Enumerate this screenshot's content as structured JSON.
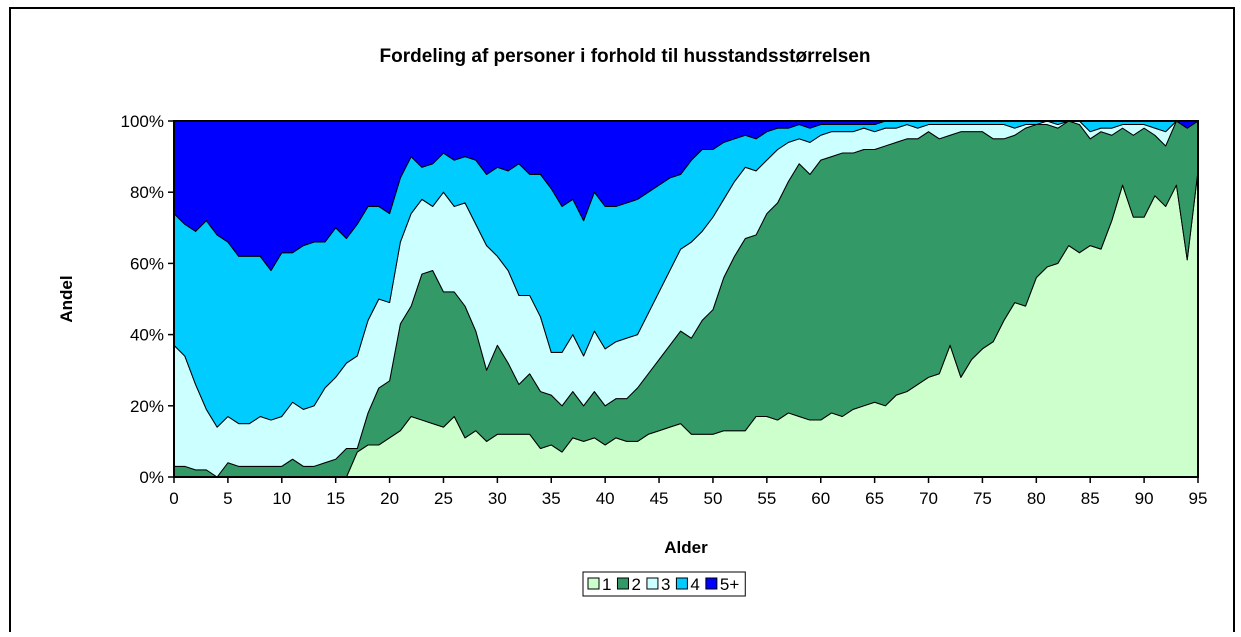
{
  "chart_data": {
    "type": "stacked_area",
    "title": "Fordeling af personer i forhold til husstandsstørrelsen",
    "x_label": "Alder",
    "y_label": "Andel",
    "x": [
      0,
      1,
      2,
      3,
      4,
      5,
      6,
      7,
      8,
      9,
      10,
      11,
      12,
      13,
      14,
      15,
      16,
      17,
      18,
      19,
      20,
      21,
      22,
      23,
      24,
      25,
      26,
      27,
      28,
      29,
      30,
      31,
      32,
      33,
      34,
      35,
      36,
      37,
      38,
      39,
      40,
      41,
      42,
      43,
      44,
      45,
      46,
      47,
      48,
      49,
      50,
      51,
      52,
      53,
      54,
      55,
      56,
      57,
      58,
      59,
      60,
      61,
      62,
      63,
      64,
      65,
      66,
      67,
      68,
      69,
      70,
      71,
      72,
      73,
      74,
      75,
      76,
      77,
      78,
      79,
      80,
      81,
      82,
      83,
      84,
      85,
      86,
      87,
      88,
      89,
      90,
      91,
      92,
      93,
      94,
      95
    ],
    "xlim": [
      0,
      95
    ],
    "xticks": [
      0,
      5,
      10,
      15,
      20,
      25,
      30,
      35,
      40,
      45,
      50,
      55,
      60,
      65,
      70,
      75,
      80,
      85,
      90,
      95
    ],
    "ylim": [
      0,
      100
    ],
    "yticks": [
      {
        "value": 0,
        "label": "0%"
      },
      {
        "value": 20,
        "label": "20%"
      },
      {
        "value": 40,
        "label": "40%"
      },
      {
        "value": 60,
        "label": "60%"
      },
      {
        "value": 80,
        "label": "80%"
      },
      {
        "value": 100,
        "label": "100%"
      }
    ],
    "legend": "bottom",
    "series": [
      {
        "name": "1",
        "color": "#ccffcc",
        "values": [
          0,
          0,
          0,
          0,
          0,
          0,
          0,
          0,
          0,
          0,
          0,
          0,
          0,
          0,
          0,
          0,
          0,
          7,
          9,
          9,
          11,
          13,
          17,
          16,
          15,
          14,
          17,
          11,
          13,
          10,
          12,
          12,
          12,
          12,
          8,
          9,
          7,
          11,
          10,
          11,
          9,
          11,
          10,
          10,
          12,
          13,
          14,
          15,
          12,
          12,
          12,
          13,
          13,
          13,
          17,
          17,
          16,
          18,
          17,
          16,
          16,
          18,
          17,
          19,
          20,
          21,
          20,
          23,
          24,
          26,
          28,
          29,
          37,
          28,
          33,
          36,
          38,
          44,
          49,
          48,
          56,
          59,
          60,
          65,
          63,
          65,
          64,
          72,
          82,
          73,
          73,
          79,
          76,
          82,
          61,
          86
        ]
      },
      {
        "name": "2",
        "color": "#339966",
        "values": [
          3,
          3,
          2,
          2,
          0,
          4,
          3,
          3,
          3,
          3,
          3,
          5,
          3,
          3,
          4,
          5,
          8,
          1,
          9,
          16,
          16,
          30,
          31,
          41,
          43,
          38,
          35,
          37,
          28,
          20,
          25,
          20,
          14,
          17,
          16,
          14,
          13,
          13,
          10,
          13,
          11,
          11,
          12,
          15,
          17,
          20,
          23,
          26,
          27,
          32,
          35,
          43,
          49,
          54,
          51,
          57,
          61,
          65,
          71,
          69,
          73,
          72,
          74,
          72,
          72,
          71,
          73,
          71,
          71,
          69,
          69,
          66,
          59,
          69,
          64,
          61,
          57,
          51,
          47,
          50,
          43,
          40,
          38,
          35,
          36,
          30,
          33,
          24,
          16,
          23,
          25,
          17,
          17,
          18,
          37,
          14
        ]
      },
      {
        "name": "3",
        "color": "#ccffff",
        "values": [
          34,
          31,
          24,
          17,
          14,
          13,
          12,
          12,
          14,
          13,
          14,
          16,
          16,
          17,
          21,
          23,
          24,
          26,
          26,
          25,
          22,
          23,
          26,
          21,
          18,
          28,
          24,
          29,
          30,
          35,
          25,
          26,
          25,
          22,
          21,
          12,
          15,
          16,
          14,
          17,
          16,
          16,
          17,
          15,
          17,
          19,
          21,
          23,
          27,
          25,
          26,
          22,
          21,
          20,
          18,
          15,
          15,
          11,
          7,
          9,
          7,
          7,
          6,
          6,
          6,
          5,
          5,
          4,
          4,
          3,
          2,
          4,
          3,
          2,
          2,
          2,
          4,
          4,
          2,
          1,
          0,
          1,
          1,
          0,
          1,
          2,
          1,
          2,
          1,
          3,
          1,
          2,
          4,
          0,
          0,
          0
        ]
      },
      {
        "name": "4",
        "color": "#00ccff",
        "values": [
          37,
          37,
          43,
          53,
          54,
          49,
          47,
          47,
          45,
          42,
          46,
          42,
          46,
          46,
          41,
          42,
          35,
          37,
          32,
          26,
          25,
          18,
          16,
          9,
          12,
          11,
          13,
          13,
          18,
          20,
          25,
          28,
          37,
          34,
          40,
          46,
          41,
          38,
          38,
          39,
          40,
          38,
          38,
          38,
          34,
          30,
          26,
          21,
          23,
          23,
          19,
          16,
          12,
          9,
          9,
          8,
          6,
          4,
          4,
          4,
          3,
          2,
          2,
          2,
          1,
          2,
          2,
          2,
          1,
          2,
          1,
          1,
          1,
          1,
          1,
          1,
          1,
          1,
          2,
          1,
          1,
          0,
          1,
          0,
          0,
          3,
          2,
          2,
          1,
          1,
          1,
          2,
          3,
          0,
          0,
          0
        ]
      },
      {
        "name": "5+",
        "color": "#0000ff",
        "values": [
          26,
          29,
          31,
          28,
          32,
          34,
          38,
          38,
          38,
          42,
          37,
          37,
          35,
          34,
          34,
          30,
          33,
          29,
          24,
          24,
          26,
          16,
          10,
          13,
          12,
          9,
          11,
          10,
          11,
          15,
          13,
          14,
          12,
          15,
          15,
          19,
          24,
          22,
          28,
          20,
          24,
          24,
          23,
          22,
          20,
          18,
          16,
          15,
          11,
          8,
          8,
          6,
          5,
          4,
          5,
          3,
          2,
          2,
          1,
          2,
          1,
          1,
          1,
          1,
          1,
          1,
          0,
          0,
          0,
          0,
          0,
          0,
          0,
          0,
          0,
          0,
          0,
          0,
          0,
          0,
          0,
          0,
          0,
          0,
          0,
          0,
          0,
          0,
          0,
          0,
          0,
          0,
          0,
          0,
          2,
          0
        ]
      }
    ]
  }
}
